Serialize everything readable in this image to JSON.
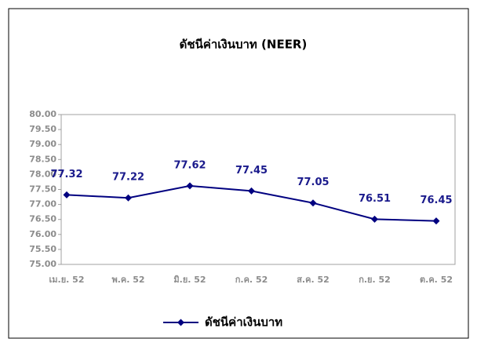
{
  "chart_data": {
    "type": "line",
    "title": "ดัชนีค่าเงินบาท (NEER)",
    "categories": [
      "เม.ย. 52",
      "พ.ค. 52",
      "มิ.ย. 52",
      "ก.ค. 52",
      "ส.ค. 52",
      "ก.ย. 52",
      "ต.ค. 52"
    ],
    "series": [
      {
        "name": "ดัชนีค่าเงินบาท",
        "color": "#000080",
        "values": [
          77.32,
          77.22,
          77.62,
          77.45,
          77.05,
          76.51,
          76.45
        ]
      }
    ],
    "ylim": [
      75,
      80
    ],
    "yticks": [
      {
        "value": 75,
        "label": "75.00"
      },
      {
        "value": 75.5,
        "label": "75.50"
      },
      {
        "value": 76,
        "label": "76.00"
      },
      {
        "value": 76.5,
        "label": "76.50"
      },
      {
        "value": 77,
        "label": "77.00"
      },
      {
        "value": 77.5,
        "label": "77.50"
      },
      {
        "value": 78,
        "label": "78.00"
      },
      {
        "value": 78.5,
        "label": "78.50"
      },
      {
        "value": 79,
        "label": "79.00"
      },
      {
        "value": 79.5,
        "label": "79.50"
      },
      {
        "value": 80,
        "label": "80.00"
      }
    ],
    "legend": "bottom"
  }
}
